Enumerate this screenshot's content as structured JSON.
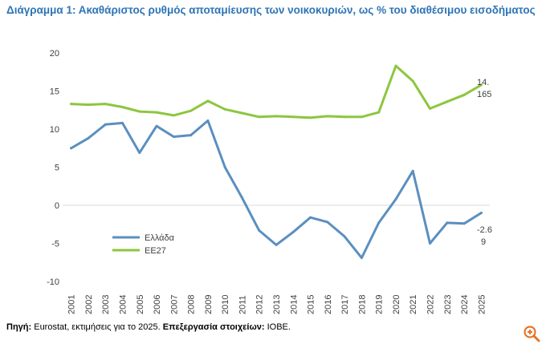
{
  "title": "Διάγραμμα 1: Ακαθάριστος ρυθμός αποταμίευσης των νοικοκυριών, ως % του διαθέσιμου εισοδήματος",
  "source": {
    "label": "Πηγή:",
    "text": " Eurostat, εκτιμήσεις για το 2025. ",
    "processing_label": "Επεξεργασία στοιχείων:",
    "processing_text": " ΙΟΒΕ."
  },
  "zoom_icon": "zoom-in-icon",
  "colors": {
    "greece": "#5b8fc0",
    "eu27": "#8dc63f",
    "zoom": "#e8742a"
  },
  "chart_data": {
    "type": "line",
    "x": [
      "2001",
      "2002",
      "2003",
      "2004",
      "2005",
      "2006",
      "2007",
      "2008",
      "2009",
      "2010",
      "2011",
      "2012",
      "2013",
      "2014",
      "2015",
      "2016",
      "2017",
      "2018",
      "2019",
      "2020",
      "2021",
      "2022",
      "2023",
      "2024",
      "2025"
    ],
    "ylim": [
      -10,
      20
    ],
    "yticks": [
      "20",
      "15",
      "10",
      "5",
      "0",
      "-5",
      "-10"
    ],
    "grid": false,
    "legend_position": "lower-left",
    "series": [
      {
        "name": "Ελλάδα",
        "color": "#5b8fc0",
        "values": [
          7.5,
          8.8,
          10.6,
          10.8,
          6.9,
          10.4,
          9.0,
          9.2,
          11.1,
          5.0,
          1.0,
          -3.3,
          -5.2,
          -3.5,
          -1.6,
          -2.2,
          -4.1,
          -6.9,
          -2.3,
          0.8,
          4.5,
          -5.0,
          -2.3,
          -2.4,
          -1.0
        ],
        "end_label_lines": [
          "-2.6",
          "9"
        ]
      },
      {
        "name": "ΕΕ27",
        "color": "#8dc63f",
        "values": [
          13.3,
          13.2,
          13.3,
          12.9,
          12.3,
          12.2,
          11.8,
          12.4,
          13.7,
          12.6,
          12.1,
          11.6,
          11.7,
          11.6,
          11.5,
          11.7,
          11.6,
          11.6,
          12.2,
          18.3,
          16.3,
          12.7,
          13.6,
          14.5,
          15.8
        ],
        "end_label_lines": [
          "14.",
          "165"
        ]
      }
    ]
  }
}
